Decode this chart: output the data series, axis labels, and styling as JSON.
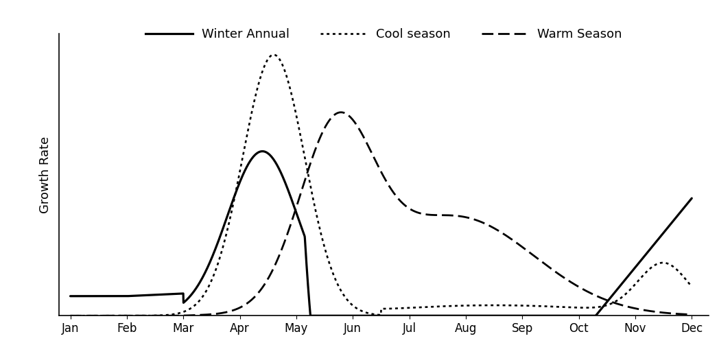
{
  "title": "",
  "ylabel": "Growth Rate",
  "xlabel": "",
  "months": [
    "Jan",
    "Feb",
    "Mar",
    "Apr",
    "May",
    "Jun",
    "Jul",
    "Aug",
    "Sep",
    "Oct",
    "Nov",
    "Dec"
  ],
  "background_color": "#ffffff",
  "line_color": "#000000",
  "legend_entries": [
    "Winter Annual",
    "Cool season",
    "Warm Season"
  ],
  "ylim": [
    0,
    1.08
  ],
  "xlim_min": -0.2,
  "xlim_max": 11.3
}
